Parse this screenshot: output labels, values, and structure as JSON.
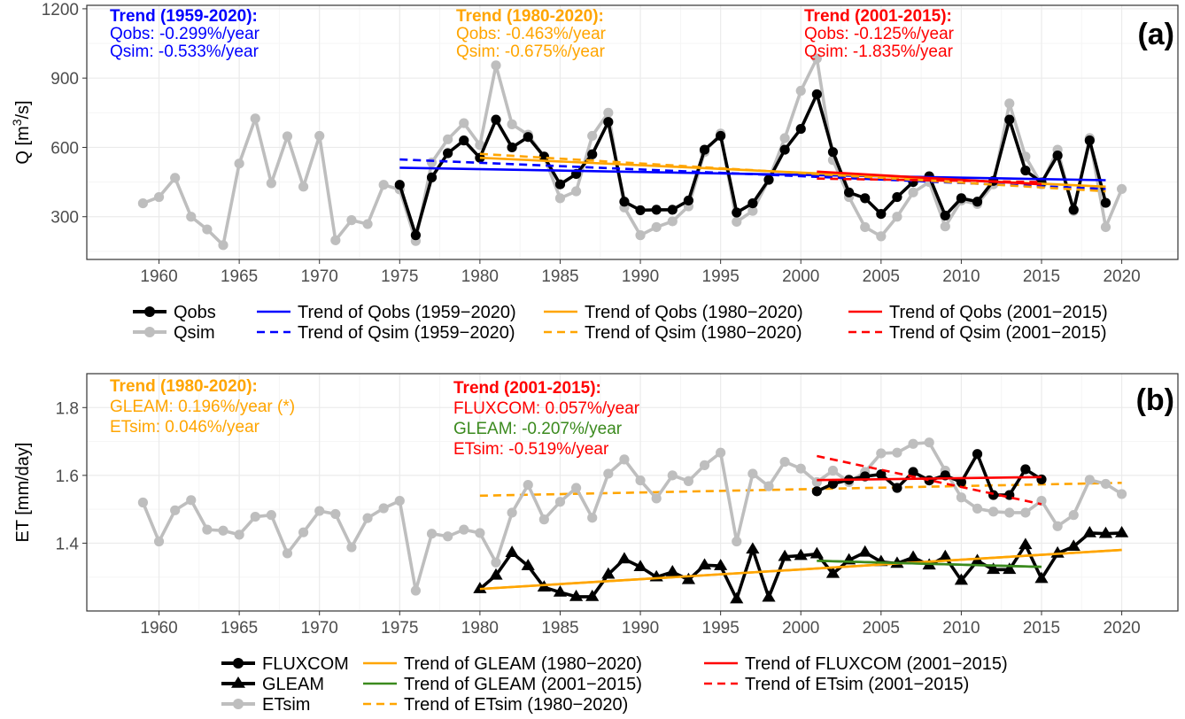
{
  "colors": {
    "black": "#000000",
    "gray": "#bebebe",
    "blue": "#0000ff",
    "orange": "#ffa500",
    "red": "#ff0000",
    "green": "#3b8a1e",
    "grid_major": "#ebebeb",
    "grid_minor": "#f5f5f5"
  },
  "chart_data": [
    {
      "type": "line",
      "panel_label": "(a)",
      "ylabel_parts": [
        "Q [m",
        "3",
        "/s]"
      ],
      "xlim": [
        1955.5,
        2023.5
      ],
      "ylim": [
        115,
        1215
      ],
      "xticks": [
        1960,
        1965,
        1970,
        1975,
        1980,
        1985,
        1990,
        1995,
        2000,
        2005,
        2010,
        2015,
        2020
      ],
      "yticks": [
        300,
        600,
        900,
        1200
      ],
      "grid": true,
      "series": [
        {
          "name": "Qsim",
          "marker": "circle",
          "color_key": "gray",
          "x": [
            1959,
            1960,
            1961,
            1962,
            1963,
            1964,
            1965,
            1966,
            1967,
            1968,
            1969,
            1970,
            1971,
            1972,
            1973,
            1974,
            1975,
            1976,
            1977,
            1978,
            1979,
            1980,
            1981,
            1982,
            1983,
            1984,
            1985,
            1986,
            1987,
            1988,
            1989,
            1990,
            1991,
            1992,
            1993,
            1994,
            1995,
            1996,
            1997,
            1998,
            1999,
            2000,
            2001,
            2002,
            2003,
            2004,
            2005,
            2006,
            2007,
            2008,
            2009,
            2010,
            2011,
            2012,
            2013,
            2014,
            2015,
            2016,
            2017,
            2018,
            2019,
            2020
          ],
          "y": [
            358,
            385,
            468,
            300,
            245,
            177,
            530,
            725,
            445,
            648,
            430,
            650,
            198,
            285,
            268,
            438,
            418,
            195,
            535,
            635,
            705,
            610,
            955,
            700,
            655,
            560,
            380,
            410,
            650,
            750,
            340,
            220,
            255,
            280,
            345,
            580,
            660,
            278,
            325,
            460,
            640,
            845,
            985,
            545,
            385,
            255,
            215,
            300,
            405,
            450,
            258,
            370,
            355,
            440,
            790,
            560,
            440,
            590,
            325,
            640,
            255,
            420
          ]
        },
        {
          "name": "Qobs",
          "marker": "circle",
          "color_key": "black",
          "x": [
            1975,
            1976,
            1977,
            1978,
            1979,
            1980,
            1981,
            1982,
            1983,
            1984,
            1985,
            1986,
            1987,
            1988,
            1989,
            1990,
            1991,
            1992,
            1993,
            1994,
            1995,
            1996,
            1997,
            1998,
            1999,
            2000,
            2001,
            2002,
            2003,
            2004,
            2005,
            2006,
            2007,
            2008,
            2009,
            2010,
            2011,
            2012,
            2013,
            2014,
            2015,
            2016,
            2017,
            2018,
            2019
          ],
          "y": [
            438,
            220,
            470,
            575,
            630,
            555,
            720,
            600,
            645,
            560,
            440,
            485,
            570,
            710,
            365,
            328,
            330,
            330,
            370,
            590,
            650,
            318,
            358,
            460,
            590,
            680,
            830,
            580,
            405,
            380,
            312,
            385,
            450,
            475,
            305,
            380,
            365,
            455,
            720,
            500,
            448,
            565,
            330,
            630,
            360
          ]
        }
      ],
      "trends": [
        {
          "name": "Trend of Qobs (1959–2020)",
          "color_key": "blue",
          "dash": false,
          "x": [
            1975,
            2019
          ],
          "y": [
            512,
            458
          ]
        },
        {
          "name": "Trend of Qsim (1959–2020)",
          "color_key": "blue",
          "dash": true,
          "x": [
            1975,
            2019
          ],
          "y": [
            548,
            420
          ]
        },
        {
          "name": "Trend of Qobs (1980–2020)",
          "color_key": "orange",
          "dash": false,
          "x": [
            1980,
            2019
          ],
          "y": [
            555,
            430
          ]
        },
        {
          "name": "Trend of Qsim (1980–2020)",
          "color_key": "orange",
          "dash": true,
          "x": [
            1980,
            2019
          ],
          "y": [
            572,
            410
          ]
        },
        {
          "name": "Trend of Qobs (2001–2015)",
          "color_key": "red",
          "dash": false,
          "x": [
            2001,
            2015
          ],
          "y": [
            495,
            440
          ]
        },
        {
          "name": "Trend of Qsim (2001–2015)",
          "color_key": "red",
          "dash": true,
          "x": [
            2001,
            2015
          ],
          "y": [
            465,
            450
          ]
        }
      ],
      "annotations": [
        {
          "color_key": "blue",
          "lines": [
            "Trend (1959-2020):",
            "Qobs: -0.299%/year",
            "Qsim: -0.533%/year"
          ]
        },
        {
          "color_key": "orange",
          "lines": [
            "Trend (1980-2020):",
            "Qobs: -0.463%/year",
            "Qsim: -0.675%/year"
          ]
        },
        {
          "color_key": "red",
          "lines": [
            "Trend (2001-2015):",
            "Qobs: -0.125%/year",
            "Qsim: -1.835%/year"
          ]
        }
      ],
      "legend": [
        [
          {
            "label": "Qobs",
            "type": "line-point",
            "color_key": "black",
            "marker": "circle"
          },
          {
            "label": "Qsim",
            "type": "line-point",
            "color_key": "gray",
            "marker": "circle"
          }
        ],
        [
          {
            "label": "Trend of Qobs (1959−2020)",
            "type": "line",
            "color_key": "blue",
            "dash": false
          },
          {
            "label": "Trend of Qsim (1959−2020)",
            "type": "line",
            "color_key": "blue",
            "dash": true
          }
        ],
        [
          {
            "label": "Trend of Qobs (1980−2020)",
            "type": "line",
            "color_key": "orange",
            "dash": false
          },
          {
            "label": "Trend of Qsim (1980−2020)",
            "type": "line",
            "color_key": "orange",
            "dash": true
          }
        ],
        [
          {
            "label": "Trend of Qobs (2001−2015)",
            "type": "line",
            "color_key": "red",
            "dash": false
          },
          {
            "label": "Trend of Qsim (2001−2015)",
            "type": "line",
            "color_key": "red",
            "dash": true
          }
        ]
      ]
    },
    {
      "type": "line",
      "panel_label": "(b)",
      "ylabel_parts": [
        "ET [mm/day]"
      ],
      "xlim": [
        1955.5,
        2023.5
      ],
      "ylim": [
        1.2,
        1.9
      ],
      "xticks": [
        1960,
        1965,
        1970,
        1975,
        1980,
        1985,
        1990,
        1995,
        2000,
        2005,
        2010,
        2015,
        2020
      ],
      "yticks": [
        1.4,
        1.6,
        1.8
      ],
      "grid": true,
      "series": [
        {
          "name": "ETsim",
          "marker": "circle",
          "color_key": "gray",
          "x": [
            1959,
            1960,
            1961,
            1962,
            1963,
            1964,
            1965,
            1966,
            1967,
            1968,
            1969,
            1970,
            1971,
            1972,
            1973,
            1974,
            1975,
            1976,
            1977,
            1978,
            1979,
            1980,
            1981,
            1982,
            1983,
            1984,
            1985,
            1986,
            1987,
            1988,
            1989,
            1990,
            1991,
            1992,
            1993,
            1994,
            1995,
            1996,
            1997,
            1998,
            1999,
            2000,
            2001,
            2002,
            2003,
            2004,
            2005,
            2006,
            2007,
            2008,
            2009,
            2010,
            2011,
            2012,
            2013,
            2014,
            2015,
            2016,
            2017,
            2018,
            2019,
            2020
          ],
          "y": [
            1.52,
            1.405,
            1.497,
            1.527,
            1.44,
            1.437,
            1.425,
            1.478,
            1.483,
            1.37,
            1.432,
            1.495,
            1.486,
            1.388,
            1.474,
            1.503,
            1.525,
            1.26,
            1.428,
            1.42,
            1.44,
            1.43,
            1.343,
            1.49,
            1.572,
            1.47,
            1.522,
            1.563,
            1.475,
            1.605,
            1.647,
            1.585,
            1.532,
            1.6,
            1.583,
            1.63,
            1.667,
            1.405,
            1.605,
            1.568,
            1.64,
            1.62,
            1.58,
            1.614,
            1.58,
            1.61,
            1.665,
            1.667,
            1.693,
            1.697,
            1.614,
            1.535,
            1.502,
            1.493,
            1.49,
            1.49,
            1.525,
            1.45,
            1.483,
            1.587,
            1.575,
            1.545
          ]
        },
        {
          "name": "FLUXCOM",
          "marker": "circle",
          "color_key": "black",
          "x": [
            2001,
            2002,
            2003,
            2004,
            2005,
            2006,
            2007,
            2008,
            2009,
            2010,
            2011,
            2012,
            2013,
            2014,
            2015
          ],
          "y": [
            1.553,
            1.575,
            1.587,
            1.597,
            1.603,
            1.563,
            1.61,
            1.585,
            1.6,
            1.58,
            1.663,
            1.542,
            1.542,
            1.618,
            1.588
          ]
        },
        {
          "name": "GLEAM",
          "marker": "triangle",
          "color_key": "black",
          "x": [
            1980,
            1981,
            1982,
            1983,
            1984,
            1985,
            1986,
            1987,
            1988,
            1989,
            1990,
            1991,
            1992,
            1993,
            1994,
            1995,
            1996,
            1997,
            1998,
            1999,
            2000,
            2001,
            2002,
            2003,
            2004,
            2005,
            2006,
            2007,
            2008,
            2009,
            2010,
            2011,
            2012,
            2013,
            2014,
            2015,
            2016,
            2017,
            2018,
            2019,
            2020
          ],
          "y": [
            1.265,
            1.305,
            1.372,
            1.333,
            1.27,
            1.255,
            1.242,
            1.242,
            1.308,
            1.353,
            1.33,
            1.3,
            1.315,
            1.292,
            1.335,
            1.333,
            1.235,
            1.382,
            1.24,
            1.36,
            1.363,
            1.368,
            1.31,
            1.35,
            1.373,
            1.345,
            1.34,
            1.358,
            1.335,
            1.36,
            1.29,
            1.348,
            1.322,
            1.322,
            1.395,
            1.295,
            1.37,
            1.39,
            1.43,
            1.428,
            1.43
          ]
        }
      ],
      "trends": [
        {
          "name": "Trend of GLEAM (1980–2020)",
          "color_key": "orange",
          "dash": false,
          "x": [
            1980,
            2020
          ],
          "y": [
            1.265,
            1.38
          ]
        },
        {
          "name": "Trend of ETsim (1980–2020)",
          "color_key": "orange",
          "dash": true,
          "x": [
            1980,
            2020
          ],
          "y": [
            1.54,
            1.578
          ]
        },
        {
          "name": "Trend of GLEAM (2001–2015)",
          "color_key": "green",
          "dash": false,
          "x": [
            2001,
            2015
          ],
          "y": [
            1.348,
            1.33
          ]
        },
        {
          "name": "Trend of FLUXCOM (2001–2015)",
          "color_key": "red",
          "dash": false,
          "x": [
            2001,
            2015
          ],
          "y": [
            1.586,
            1.595
          ]
        },
        {
          "name": "Trend of ETsim (2001–2015)",
          "color_key": "red",
          "dash": true,
          "x": [
            2001,
            2015
          ],
          "y": [
            1.657,
            1.515
          ]
        }
      ],
      "annotations": [
        {
          "color_key": "orange",
          "lines": [
            "Trend (1980-2020):",
            "GLEAM: 0.196%/year (*)",
            "ETsim: 0.046%/year"
          ]
        },
        {
          "color_key": "red",
          "lines": [
            "Trend (2001-2015):",
            "FLUXCOM: 0.057%/year",
            "GLEAM: -0.207%/year",
            "ETsim: -0.519%/year"
          ],
          "line_colors": [
            "red",
            "red",
            "green",
            "red"
          ]
        }
      ],
      "legend": [
        [
          {
            "label": "FLUXCOM",
            "type": "line-point",
            "color_key": "black",
            "marker": "circle"
          },
          {
            "label": "GLEAM",
            "type": "line-point",
            "color_key": "black",
            "marker": "triangle"
          },
          {
            "label": "ETsim",
            "type": "line-point",
            "color_key": "gray",
            "marker": "circle"
          }
        ],
        [
          {
            "label": "Trend of GLEAM (1980−2020)",
            "type": "line",
            "color_key": "orange",
            "dash": false
          },
          {
            "label": "Trend of GLEAM (2001−2015)",
            "type": "line",
            "color_key": "green",
            "dash": false
          },
          {
            "label": "Trend of ETsim (1980−2020)",
            "type": "line",
            "color_key": "orange",
            "dash": true
          }
        ],
        [
          {
            "label": "Trend of FLUXCOM (2001−2015)",
            "type": "line",
            "color_key": "red",
            "dash": false
          },
          {
            "label": "Trend of ETsim (2001−2015)",
            "type": "line",
            "color_key": "red",
            "dash": true
          }
        ]
      ]
    }
  ]
}
